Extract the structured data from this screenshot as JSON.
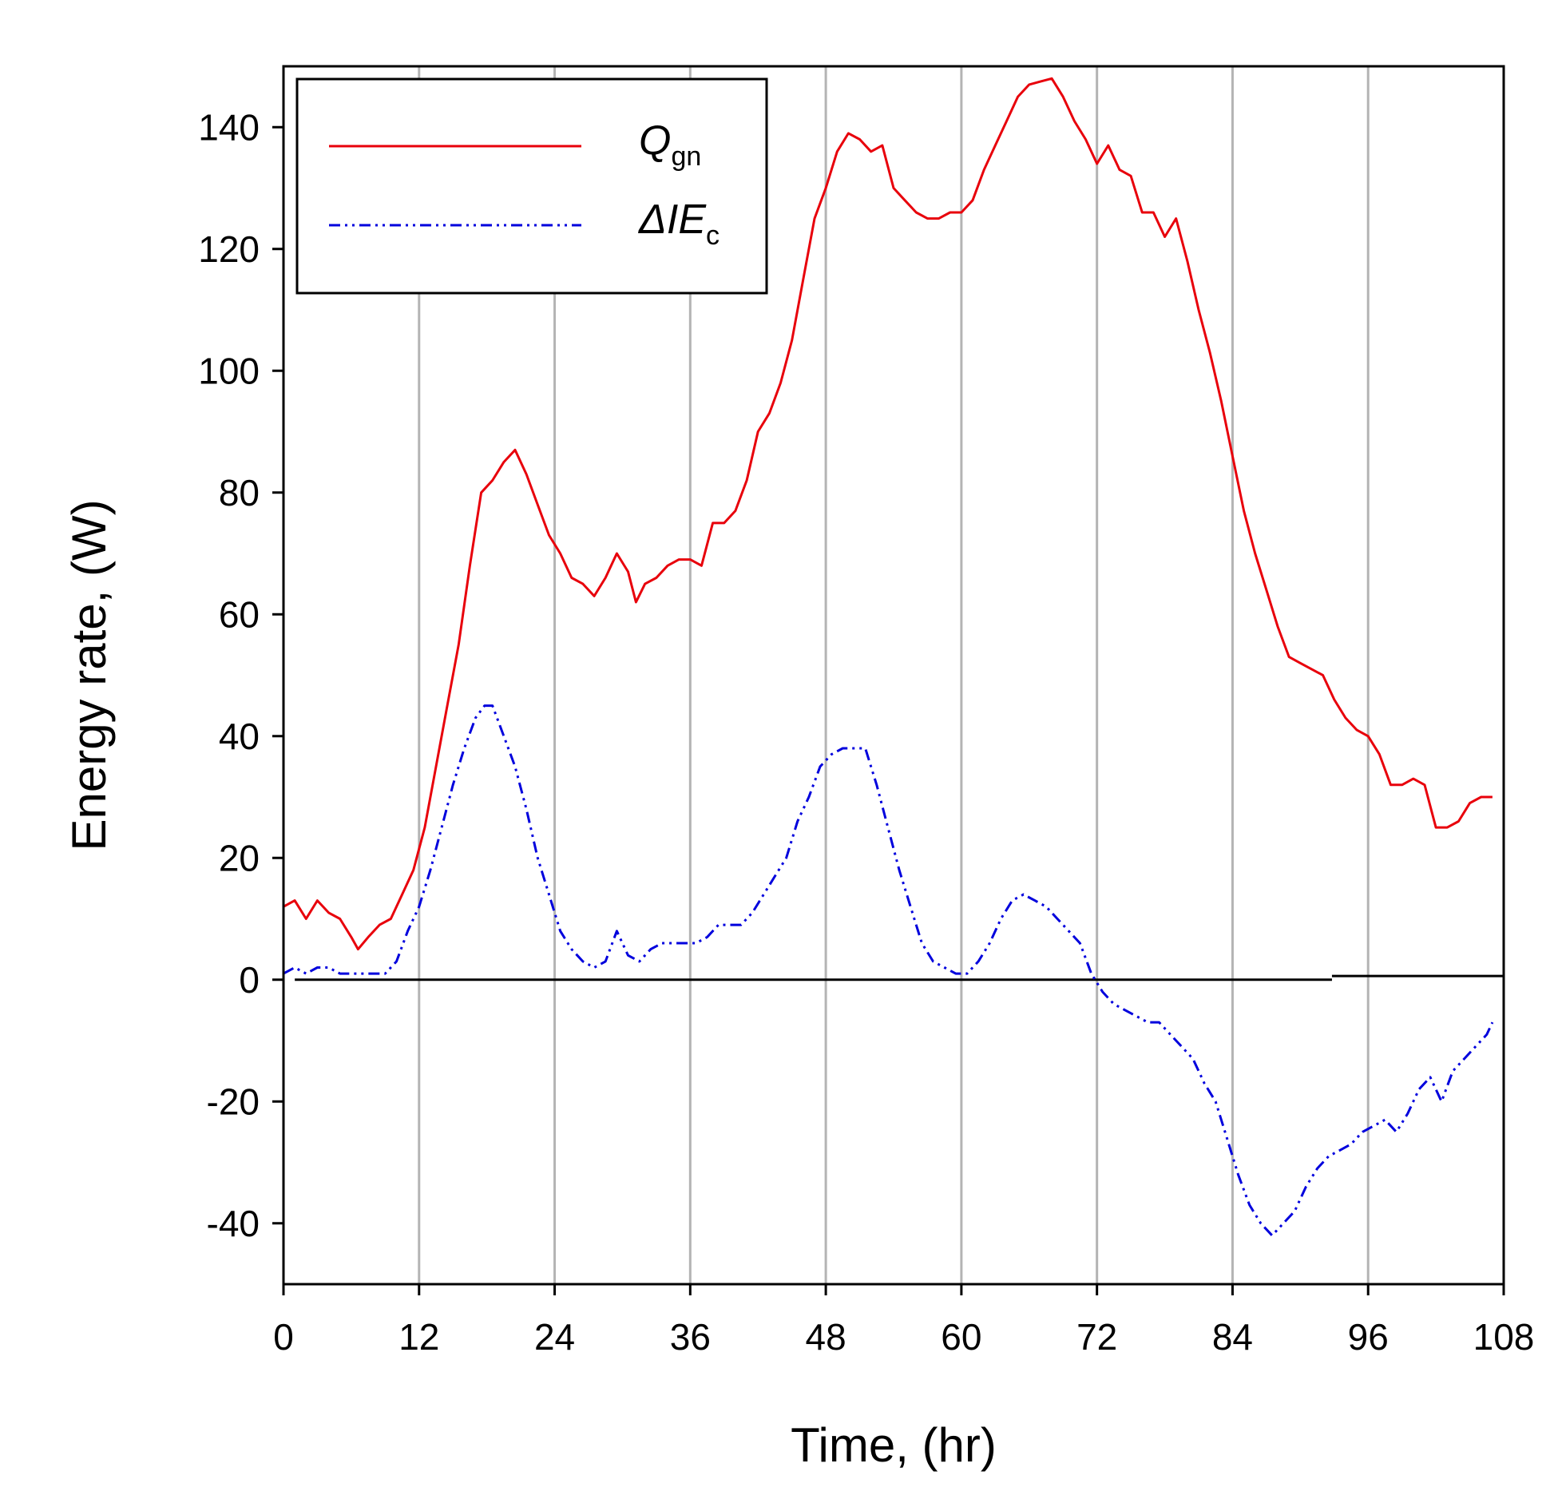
{
  "chart_data": {
    "type": "line",
    "title": "",
    "xlabel": "Time, (hr)",
    "ylabel": "Energy rate, (W)",
    "xlim": [
      0,
      108
    ],
    "ylim": [
      -50,
      150
    ],
    "x_ticks": [
      0,
      12,
      24,
      36,
      48,
      60,
      72,
      84,
      96,
      108
    ],
    "x_tick_labels": [
      "0",
      "12",
      "24",
      "36",
      "48",
      "60",
      "72",
      "84",
      "96",
      "108"
    ],
    "y_ticks": [
      -40,
      -20,
      0,
      20,
      40,
      60,
      80,
      100,
      120,
      140
    ],
    "y_tick_labels": [
      "-40",
      "-20",
      "0",
      "20",
      "40",
      "60",
      "80",
      "100",
      "120",
      "140"
    ],
    "grid": "vertical",
    "legend_position": "top-left",
    "zero_line": {
      "segments": [
        {
          "x": [
            1,
            92.8
          ],
          "y": 0
        },
        {
          "x": [
            92.8,
            108
          ],
          "y": 0.6
        }
      ],
      "color": "#000000"
    },
    "series": [
      {
        "name": "Q_gn",
        "legend_main": "Q",
        "legend_sub": "gn",
        "color": "#e8000b",
        "dash": "",
        "points": [
          [
            0,
            12
          ],
          [
            1,
            13
          ],
          [
            2,
            10
          ],
          [
            3,
            13
          ],
          [
            4,
            11
          ],
          [
            5,
            10
          ],
          [
            6,
            7
          ],
          [
            6.6,
            5
          ],
          [
            7.5,
            7
          ],
          [
            8.5,
            9
          ],
          [
            9.5,
            10
          ],
          [
            10.5,
            14
          ],
          [
            11.5,
            18
          ],
          [
            12.5,
            25
          ],
          [
            13.5,
            35
          ],
          [
            14.5,
            45
          ],
          [
            15.5,
            55
          ],
          [
            16.5,
            68
          ],
          [
            17.5,
            80
          ],
          [
            18.5,
            82
          ],
          [
            19.5,
            85
          ],
          [
            20.5,
            87
          ],
          [
            21.5,
            83
          ],
          [
            22.5,
            78
          ],
          [
            23.5,
            73
          ],
          [
            24.5,
            70
          ],
          [
            25.5,
            66
          ],
          [
            26.5,
            65
          ],
          [
            27.5,
            63
          ],
          [
            28.5,
            66
          ],
          [
            29.5,
            70
          ],
          [
            30.5,
            67
          ],
          [
            31.2,
            62
          ],
          [
            32,
            65
          ],
          [
            33,
            66
          ],
          [
            34,
            68
          ],
          [
            35,
            69
          ],
          [
            36,
            69
          ],
          [
            37,
            68
          ],
          [
            38,
            75
          ],
          [
            39,
            75
          ],
          [
            40,
            77
          ],
          [
            41,
            82
          ],
          [
            42,
            90
          ],
          [
            43,
            93
          ],
          [
            44,
            98
          ],
          [
            45,
            105
          ],
          [
            46,
            115
          ],
          [
            47,
            125
          ],
          [
            48,
            130
          ],
          [
            49,
            136
          ],
          [
            50,
            139
          ],
          [
            51,
            138
          ],
          [
            52,
            136
          ],
          [
            53,
            137
          ],
          [
            54,
            130
          ],
          [
            55,
            128
          ],
          [
            56,
            126
          ],
          [
            57,
            125
          ],
          [
            58,
            125
          ],
          [
            59,
            126
          ],
          [
            60,
            126
          ],
          [
            61,
            128
          ],
          [
            62,
            133
          ],
          [
            63,
            137
          ],
          [
            64,
            141
          ],
          [
            65,
            145
          ],
          [
            66,
            147
          ],
          [
            67,
            147.5
          ],
          [
            68,
            148
          ],
          [
            69,
            145
          ],
          [
            70,
            141
          ],
          [
            71,
            138
          ],
          [
            72,
            134
          ],
          [
            73,
            137
          ],
          [
            74,
            133
          ],
          [
            75,
            132
          ],
          [
            76,
            126
          ],
          [
            77,
            126
          ],
          [
            78,
            122
          ],
          [
            79,
            125
          ],
          [
            80,
            118
          ],
          [
            81,
            110
          ],
          [
            82,
            103
          ],
          [
            83,
            95
          ],
          [
            84,
            86
          ],
          [
            85,
            77
          ],
          [
            86,
            70
          ],
          [
            87,
            64
          ],
          [
            88,
            58
          ],
          [
            89,
            53
          ],
          [
            90,
            52
          ],
          [
            91,
            51
          ],
          [
            92,
            50
          ],
          [
            93,
            46
          ],
          [
            94,
            43
          ],
          [
            95,
            41
          ],
          [
            96,
            40
          ],
          [
            97,
            37
          ],
          [
            98,
            32
          ],
          [
            99,
            32
          ],
          [
            100,
            33
          ],
          [
            101,
            32
          ],
          [
            102,
            25
          ],
          [
            103,
            25
          ],
          [
            104,
            26
          ],
          [
            105,
            29
          ],
          [
            106,
            30
          ],
          [
            107,
            30
          ]
        ]
      },
      {
        "name": "ΔIE_c",
        "legend_main": "ΔIE",
        "legend_sub": "c",
        "color": "#0000dd",
        "dash": "14 6 3 6 3 6",
        "points": [
          [
            0,
            1
          ],
          [
            1,
            2
          ],
          [
            2,
            1
          ],
          [
            3,
            2
          ],
          [
            4,
            2
          ],
          [
            5,
            1
          ],
          [
            6,
            1
          ],
          [
            7,
            1
          ],
          [
            8,
            1
          ],
          [
            9,
            1
          ],
          [
            10,
            3
          ],
          [
            11,
            8
          ],
          [
            12,
            12
          ],
          [
            13,
            18
          ],
          [
            14,
            25
          ],
          [
            15,
            32
          ],
          [
            16,
            38
          ],
          [
            17,
            43
          ],
          [
            17.8,
            45
          ],
          [
            18.5,
            45
          ],
          [
            19.5,
            40
          ],
          [
            20.5,
            35
          ],
          [
            21.5,
            28
          ],
          [
            22.5,
            20
          ],
          [
            23.5,
            14
          ],
          [
            24.5,
            8
          ],
          [
            25.5,
            5
          ],
          [
            26.5,
            3
          ],
          [
            27.5,
            2
          ],
          [
            28.5,
            3
          ],
          [
            29.5,
            8
          ],
          [
            30.5,
            4
          ],
          [
            31.5,
            3
          ],
          [
            32.5,
            5
          ],
          [
            33.5,
            6
          ],
          [
            34.5,
            6
          ],
          [
            35.5,
            6
          ],
          [
            36.5,
            6
          ],
          [
            37.5,
            7
          ],
          [
            38.5,
            9
          ],
          [
            39.5,
            9
          ],
          [
            40.5,
            9
          ],
          [
            41.5,
            11
          ],
          [
            42.5,
            14
          ],
          [
            43.5,
            17
          ],
          [
            44.5,
            20
          ],
          [
            45.5,
            26
          ],
          [
            46.5,
            30
          ],
          [
            47.5,
            35
          ],
          [
            48.5,
            37
          ],
          [
            49.5,
            38
          ],
          [
            50.5,
            38
          ],
          [
            51.5,
            38
          ],
          [
            52.5,
            32
          ],
          [
            53.5,
            25
          ],
          [
            54.5,
            18
          ],
          [
            55.5,
            12
          ],
          [
            56.5,
            6
          ],
          [
            57.5,
            3
          ],
          [
            58.5,
            2
          ],
          [
            59.5,
            1
          ],
          [
            60.5,
            1
          ],
          [
            61.5,
            3
          ],
          [
            62.5,
            6
          ],
          [
            63.5,
            10
          ],
          [
            64.5,
            13
          ],
          [
            65.5,
            14
          ],
          [
            66.5,
            13
          ],
          [
            67.5,
            12
          ],
          [
            68.5,
            10
          ],
          [
            69.5,
            8
          ],
          [
            70.5,
            6
          ],
          [
            71.5,
            1
          ],
          [
            72.5,
            -2
          ],
          [
            73.5,
            -4
          ],
          [
            74.5,
            -5
          ],
          [
            75.5,
            -6
          ],
          [
            76.5,
            -7
          ],
          [
            77.5,
            -7
          ],
          [
            78.5,
            -9
          ],
          [
            79.5,
            -11
          ],
          [
            80.5,
            -13
          ],
          [
            81.5,
            -17
          ],
          [
            82.5,
            -20
          ],
          [
            83.5,
            -26
          ],
          [
            84.5,
            -32
          ],
          [
            85.5,
            -37
          ],
          [
            86.5,
            -40
          ],
          [
            87.5,
            -42
          ],
          [
            88.5,
            -40
          ],
          [
            89.5,
            -38
          ],
          [
            90.5,
            -34
          ],
          [
            91.5,
            -31
          ],
          [
            92.5,
            -29
          ],
          [
            93.5,
            -28
          ],
          [
            94.5,
            -27
          ],
          [
            95.5,
            -25
          ],
          [
            96.5,
            -24
          ],
          [
            97.5,
            -23
          ],
          [
            98.5,
            -25
          ],
          [
            99.5,
            -22
          ],
          [
            100.5,
            -18
          ],
          [
            101.5,
            -16
          ],
          [
            102.5,
            -20
          ],
          [
            103.5,
            -15
          ],
          [
            104.5,
            -13
          ],
          [
            105.5,
            -11
          ],
          [
            106.5,
            -9
          ],
          [
            107,
            -7
          ]
        ]
      }
    ]
  }
}
